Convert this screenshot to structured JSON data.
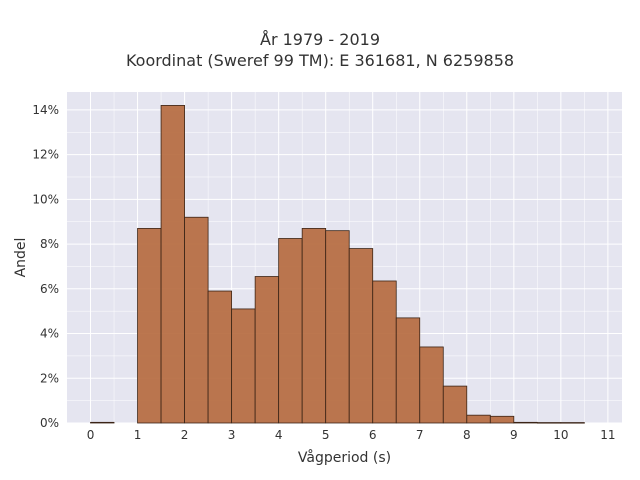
{
  "chart_data": {
    "type": "bar",
    "title": "År 1979 - 2019",
    "subtitle": "Koordinat (Sweref 99 TM): E 361681, N 6259858",
    "xlabel": "Vågperiod (s)",
    "ylabel": "Andel",
    "bin_width": 0.5,
    "bins_start": [
      0,
      0.5,
      1,
      1.5,
      2,
      2.5,
      3,
      3.5,
      4,
      4.5,
      5,
      5.5,
      6,
      6.5,
      7,
      7.5,
      8,
      8.5,
      9,
      9.5,
      10,
      10.5
    ],
    "values": [
      0.03,
      0,
      8.7,
      14.2,
      9.2,
      5.9,
      5.1,
      6.55,
      8.25,
      8.7,
      8.6,
      7.8,
      6.35,
      4.7,
      3.4,
      1.65,
      0.35,
      0.3,
      0.03,
      0.02,
      0.02,
      0
    ],
    "value_unit": "%",
    "xlim": [
      -0.5,
      11.3
    ],
    "ylim": [
      0,
      14.8
    ],
    "xticks": [
      "0",
      "1",
      "2",
      "3",
      "4",
      "5",
      "6",
      "7",
      "8",
      "9",
      "10",
      "11"
    ],
    "yticks": [
      "0%",
      "2%",
      "4%",
      "6%",
      "8%",
      "10%",
      "12%",
      "14%"
    ],
    "grid": true,
    "colors": {
      "bar": "#b5683c",
      "bar_edge": "#3b2416",
      "plot_bg": "#e5e5f0",
      "grid": "#ffffff"
    }
  }
}
